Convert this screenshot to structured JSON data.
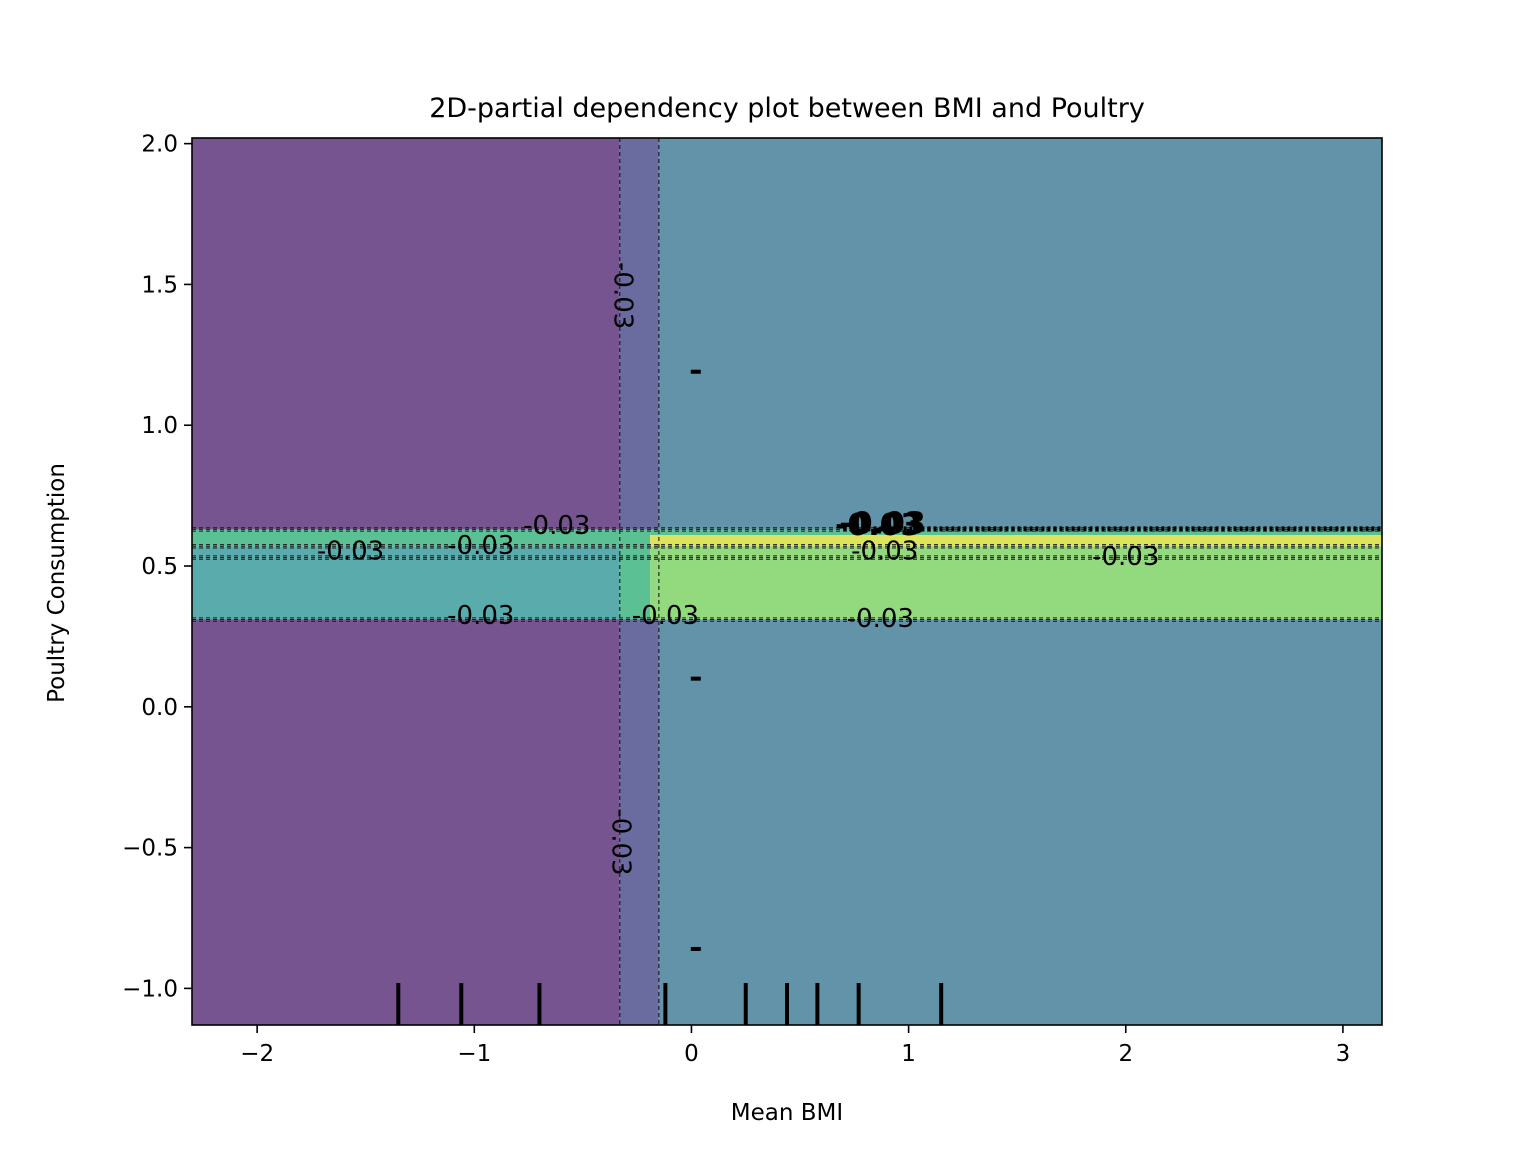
{
  "chart_data": {
    "type": "heatmap",
    "subtype": "2d-partial-dependence-contour",
    "title": "2D-partial dependency plot between BMI and Poultry",
    "xlabel": "Mean BMI",
    "ylabel": "Poultry Consumption",
    "xlim": [
      -2.3,
      3.18
    ],
    "ylim": [
      -1.13,
      2.02
    ],
    "x_ticks": [
      -2,
      -1,
      0,
      1,
      2,
      3
    ],
    "x_tick_labels": [
      "−2",
      "−1",
      "0",
      "1",
      "2",
      "3"
    ],
    "y_ticks": [
      -1.0,
      -0.5,
      0.0,
      0.5,
      1.0,
      1.5,
      2.0
    ],
    "y_tick_labels": [
      "−1.0",
      "−0.5",
      "0.0",
      "0.5",
      "1.0",
      "1.5",
      "2.0"
    ],
    "grid": false,
    "x_boundaries": [
      -0.33,
      -0.15
    ],
    "y_boundaries": [
      0.31,
      0.53,
      0.57,
      0.63
    ],
    "regions": [
      {
        "x0": -2.3,
        "x1": -0.33,
        "y0": -1.13,
        "y1": 0.31,
        "color": "#75548f"
      },
      {
        "x0": -2.3,
        "x1": -0.33,
        "y0": 0.63,
        "y1": 2.02,
        "color": "#75548f"
      },
      {
        "x0": -0.33,
        "x1": -0.15,
        "y0": -1.13,
        "y1": 0.31,
        "color": "#6a6ca0"
      },
      {
        "x0": -0.33,
        "x1": -0.15,
        "y0": 0.63,
        "y1": 2.02,
        "color": "#6a6ca0"
      },
      {
        "x0": -0.15,
        "x1": 3.18,
        "y0": -1.13,
        "y1": 0.31,
        "color": "#6293a8"
      },
      {
        "x0": -0.15,
        "x1": 3.18,
        "y0": 0.63,
        "y1": 2.02,
        "color": "#6293a8"
      },
      {
        "x0": -2.3,
        "x1": -0.33,
        "y0": 0.31,
        "y1": 0.53,
        "color": "#5aabab"
      },
      {
        "x0": -2.3,
        "x1": -0.33,
        "y0": 0.53,
        "y1": 0.57,
        "color": "#5aabab"
      },
      {
        "x0": -2.3,
        "x1": -0.33,
        "y0": 0.57,
        "y1": 0.63,
        "color": "#5cc095"
      },
      {
        "x0": -0.33,
        "x1": -0.19,
        "y0": 0.31,
        "y1": 0.63,
        "color": "#5cc095"
      },
      {
        "x0": -0.19,
        "x1": 3.18,
        "y0": 0.31,
        "y1": 0.53,
        "color": "#92da7d"
      },
      {
        "x0": -0.19,
        "x1": 3.18,
        "y0": 0.53,
        "y1": 0.57,
        "color": "#92da7d"
      },
      {
        "x0": -0.19,
        "x1": 3.18,
        "y0": 0.57,
        "y1": 0.61,
        "color": "#dde45b"
      },
      {
        "x0": -0.19,
        "x1": 3.18,
        "y0": 0.61,
        "y1": 0.63,
        "color": "#5cc095"
      }
    ],
    "contour_labels": [
      {
        "text": "-0.03",
        "x": -1.57,
        "y": 0.55,
        "rotation": 0
      },
      {
        "text": "-0.03",
        "x": -0.97,
        "y": 0.57,
        "rotation": 0
      },
      {
        "text": "-0.03",
        "x": -0.62,
        "y": 0.64,
        "rotation": 0
      },
      {
        "text": "-0.03",
        "x": -0.97,
        "y": 0.32,
        "rotation": 0
      },
      {
        "text": "-0.03",
        "x": -0.12,
        "y": 0.32,
        "rotation": 0
      },
      {
        "text": "-0.03",
        "x": 0.89,
        "y": 0.55,
        "rotation": 0
      },
      {
        "text": "-0.03",
        "x": 2.0,
        "y": 0.53,
        "rotation": 0
      },
      {
        "text": "-0.03",
        "x": 0.87,
        "y": 0.31,
        "rotation": 0
      },
      {
        "text": "-0.03",
        "x": -0.32,
        "y": 1.46,
        "rotation": 90
      },
      {
        "text": "-0.03",
        "x": -0.33,
        "y": -0.48,
        "rotation": 90
      },
      {
        "text": "-0.03",
        "x": 0.86,
        "y": 0.64,
        "rotation": 0,
        "bold": true
      },
      {
        "text": "-0.03",
        "x": 0.88,
        "y": 0.645,
        "rotation": 0,
        "bold": true
      }
    ],
    "small_marks": [
      {
        "x": 0.02,
        "y": 1.19
      },
      {
        "x": 0.02,
        "y": 0.1
      },
      {
        "x": 0.02,
        "y": -0.86
      }
    ],
    "rug_x_deciles": [
      -1.35,
      -1.06,
      -0.7,
      -0.12,
      0.25,
      0.44,
      0.58,
      0.77,
      1.15
    ]
  }
}
